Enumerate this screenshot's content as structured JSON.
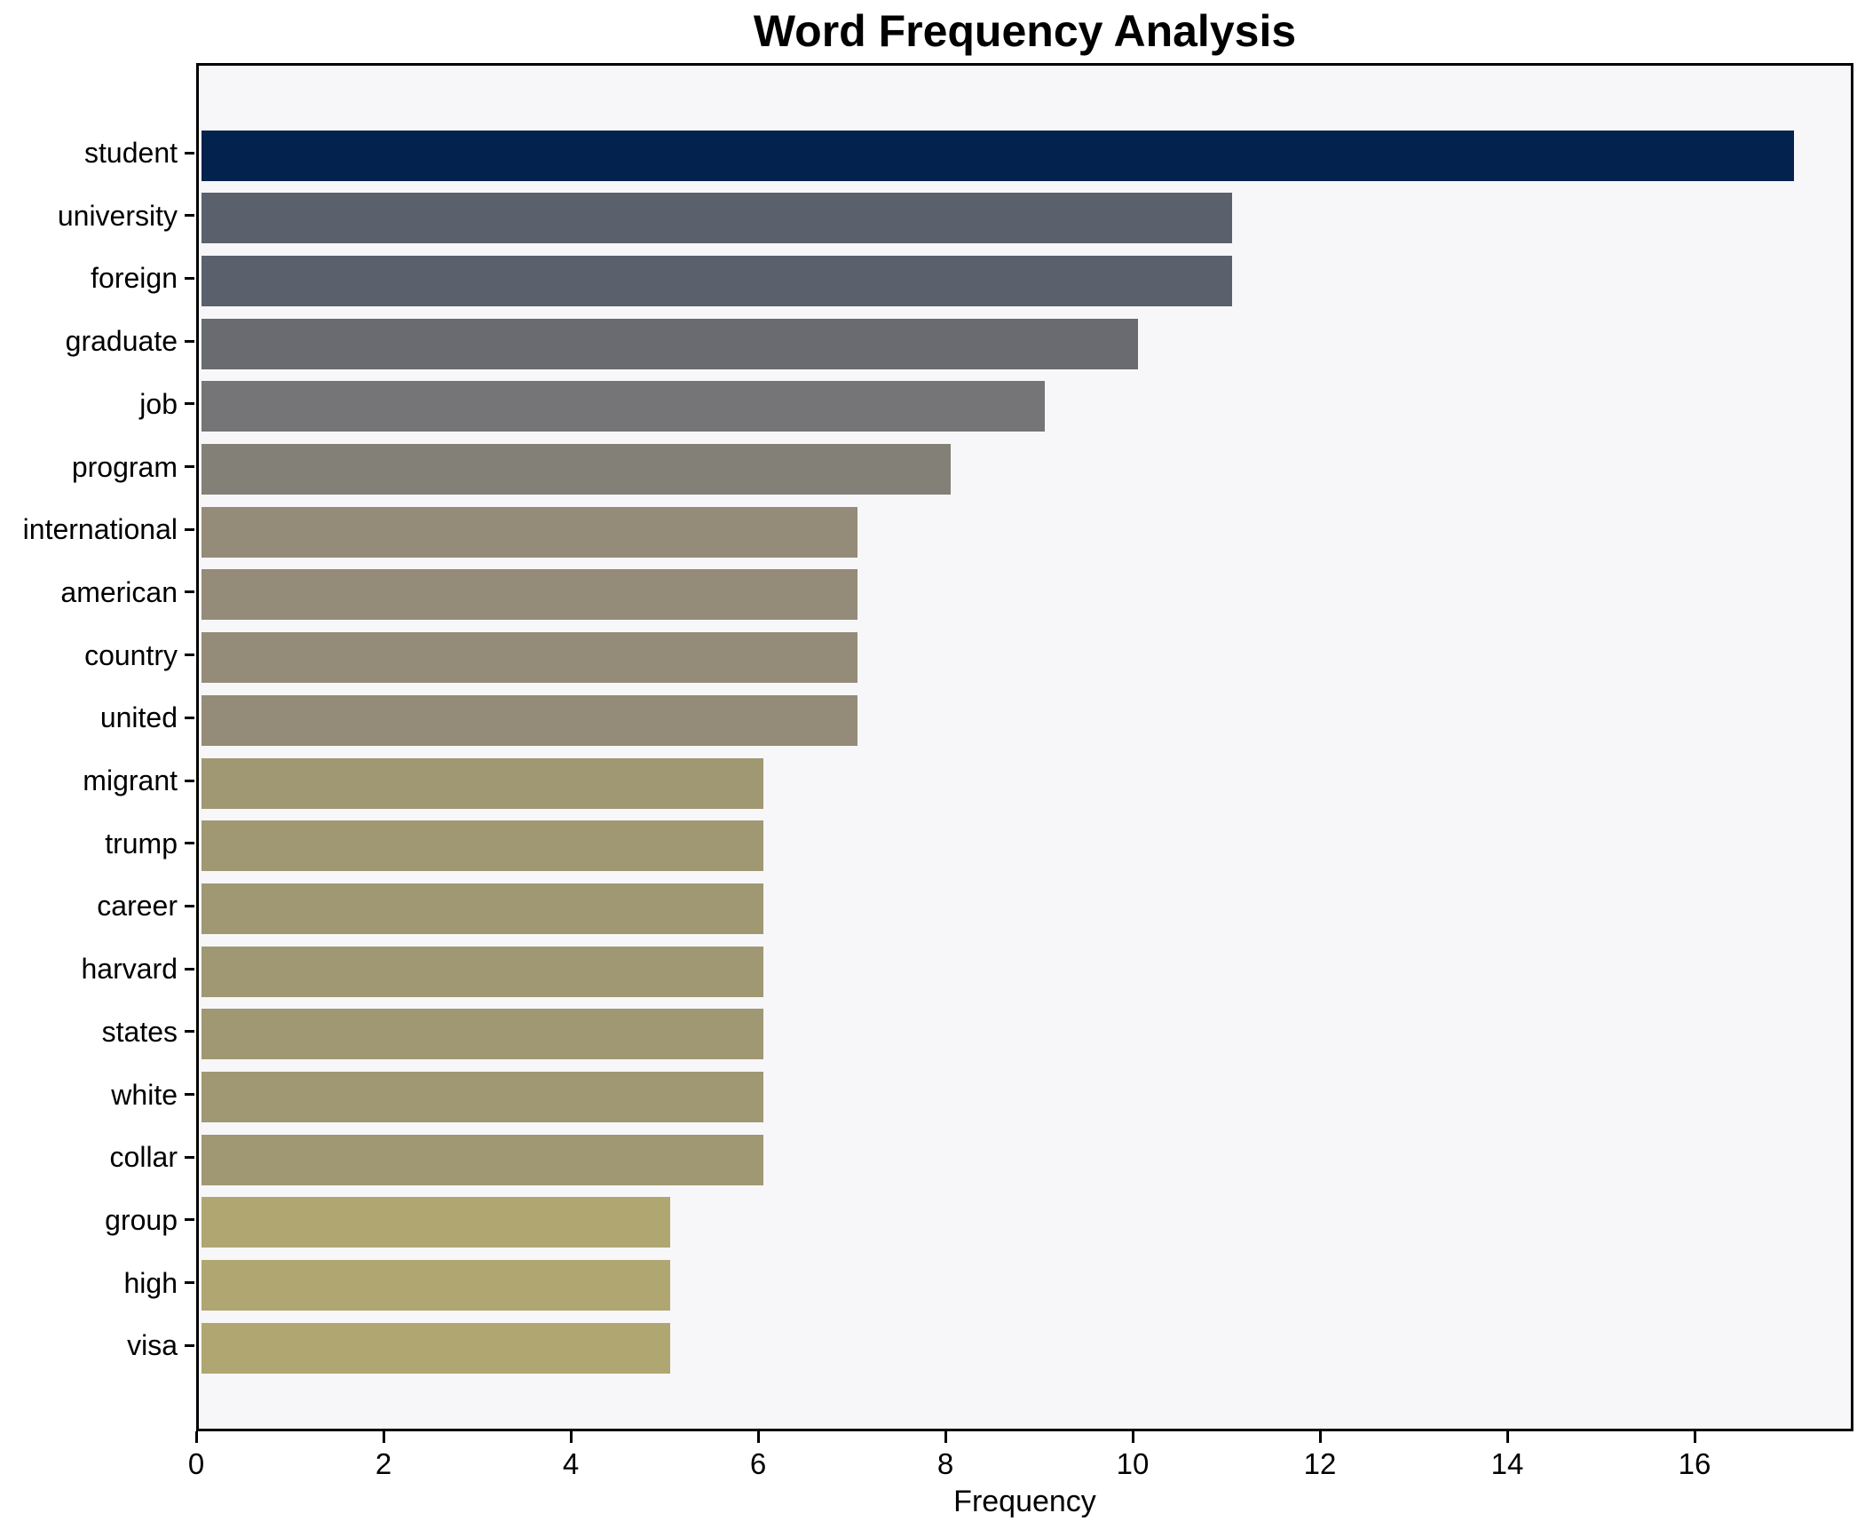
{
  "chart_data": {
    "type": "bar",
    "orientation": "horizontal",
    "title": "Word Frequency Analysis",
    "xlabel": "Frequency",
    "ylabel": "",
    "categories": [
      "student",
      "university",
      "foreign",
      "graduate",
      "job",
      "program",
      "international",
      "american",
      "country",
      "united",
      "migrant",
      "trump",
      "career",
      "harvard",
      "states",
      "white",
      "collar",
      "group",
      "high",
      "visa"
    ],
    "values": [
      17,
      11,
      11,
      10,
      9,
      8,
      7,
      7,
      7,
      7,
      6,
      6,
      6,
      6,
      6,
      6,
      6,
      5,
      5,
      5
    ],
    "bar_colors": [
      "#04224e",
      "#5a616d",
      "#5a616d",
      "#696b71",
      "#757577",
      "#838078",
      "#948c78",
      "#948c78",
      "#948c78",
      "#948c78",
      "#a09873",
      "#a09873",
      "#a09873",
      "#a09873",
      "#a09873",
      "#a09873",
      "#a09873",
      "#b0a671",
      "#b0a671",
      "#b0a671"
    ],
    "x_ticks": [
      0,
      2,
      4,
      6,
      8,
      10,
      12,
      14,
      16
    ],
    "xlim": [
      0,
      17.7
    ],
    "grid": false,
    "legend": false,
    "plot_bg": "#f7f7f9",
    "figure_bg": "#ffffff",
    "spine_color": "#000000",
    "text_color": "#000000"
  }
}
